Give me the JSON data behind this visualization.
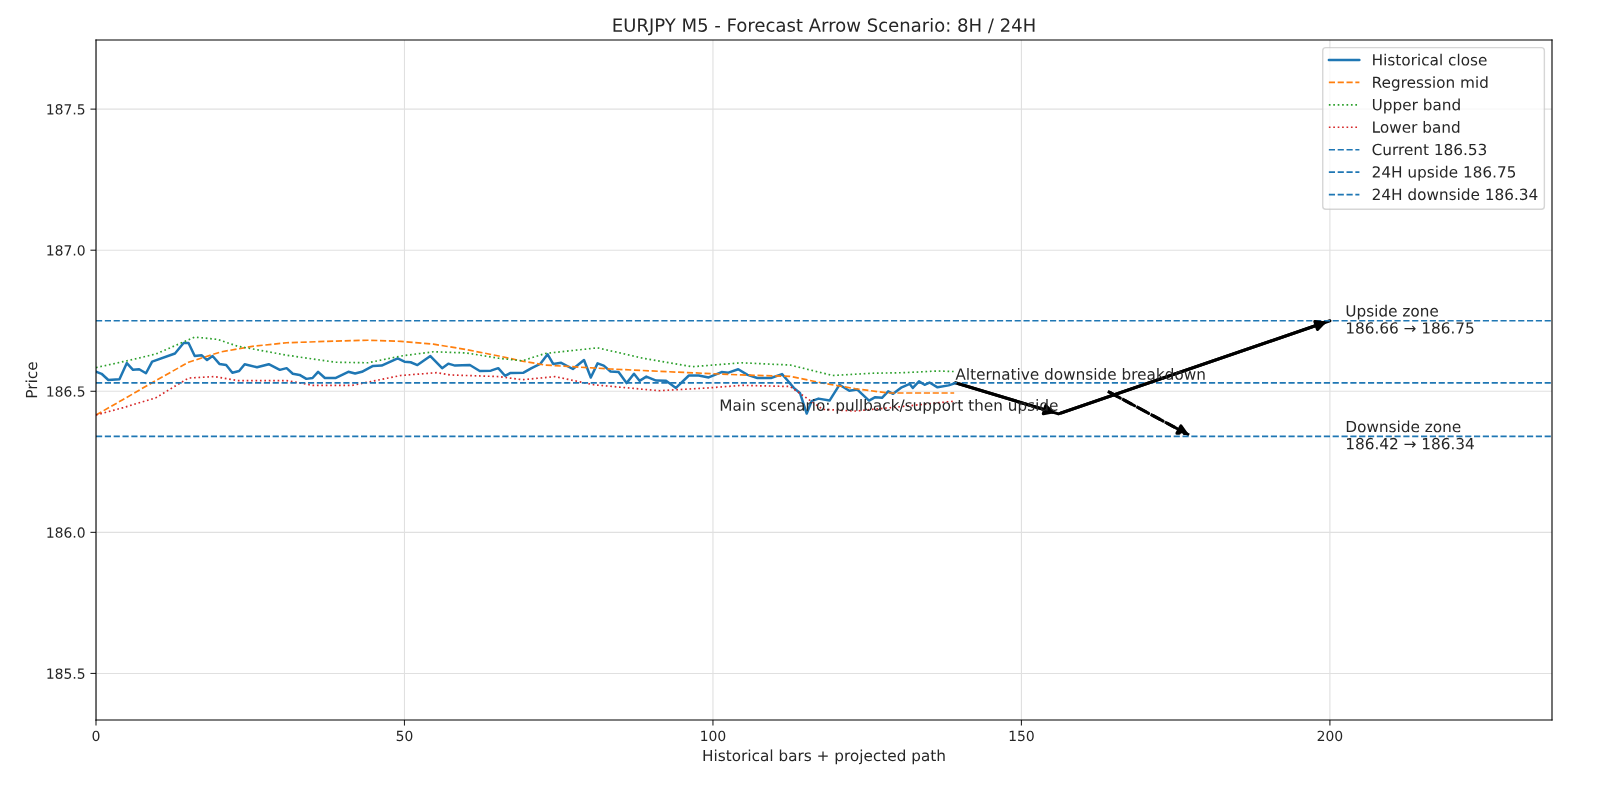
{
  "chart_data": {
    "type": "line",
    "title": "EURJPY M5 - Forecast Arrow Scenario: 8H / 24H",
    "xlabel": "Historical bars + projected path",
    "ylabel": "Price",
    "xlim": [
      0,
      236
    ],
    "ylim": [
      185.335,
      187.745
    ],
    "xticks": [
      0,
      50,
      100,
      150,
      200
    ],
    "yticks": [
      {
        "value": 185.5,
        "label": "185.5"
      },
      {
        "value": 186.0,
        "label": "186.0"
      },
      {
        "value": 186.5,
        "label": "186.5"
      },
      {
        "value": 187.0,
        "label": "187.0"
      },
      {
        "value": 187.5,
        "label": "187.5"
      }
    ],
    "grid": true,
    "legend": "top right",
    "series": [
      {
        "name": "Historical close",
        "color": "#1f77b4",
        "line_style": "solid",
        "x": [
          0,
          0.9,
          2.0,
          3.8,
          5.0,
          6.0,
          7.0,
          8.1,
          9.1,
          12.8,
          14.2,
          15.0,
          16.0,
          17.1,
          18.0,
          18.9,
          20.0,
          21.1,
          22.1,
          23.2,
          24.1,
          26.1,
          28.0,
          29.8,
          30.9,
          31.9,
          33.0,
          34.1,
          35.1,
          36.0,
          37.1,
          38.8,
          40.9,
          42.0,
          43.1,
          44.9,
          46.3,
          48.9,
          50.0,
          51.0,
          52.1,
          54.2,
          56.1,
          57.1,
          58.2,
          60.6,
          62.2,
          64.0,
          65.2,
          66.3,
          67.2,
          69.3,
          70.6,
          72.0,
          73.2,
          74.1,
          75.4,
          77.3,
          79.1,
          80.2,
          81.3,
          82.3,
          83.4,
          84.7,
          86.0,
          87.2,
          88.1,
          89.2,
          90.8,
          92.4,
          94.0,
          96.1,
          97.7,
          99.3,
          101.4,
          102.5,
          104.1,
          105.6,
          107.2,
          109.4,
          111.2,
          112.0,
          113.1,
          114.1,
          115.2,
          116.0,
          117.1,
          118.9,
          120.5,
          122.1,
          123.4,
          125.3,
          126.3,
          127.4,
          128.4,
          129.2,
          130.6,
          131.9,
          132.4,
          133.4,
          134.3,
          135.1,
          136.4,
          138.2,
          139.3
        ],
        "values": [
          186.57,
          186.562,
          186.54,
          186.543,
          186.6,
          186.576,
          186.578,
          186.564,
          186.605,
          186.634,
          186.671,
          186.671,
          186.625,
          186.628,
          186.611,
          186.625,
          186.597,
          186.593,
          186.566,
          186.572,
          186.596,
          186.585,
          186.596,
          186.576,
          186.582,
          186.562,
          186.558,
          186.544,
          186.547,
          186.569,
          186.547,
          186.547,
          186.569,
          186.563,
          186.569,
          186.59,
          186.591,
          186.617,
          186.605,
          186.603,
          186.593,
          186.625,
          186.582,
          186.598,
          186.591,
          186.593,
          186.572,
          186.573,
          186.582,
          186.555,
          186.565,
          186.566,
          186.582,
          186.597,
          186.631,
          186.597,
          186.601,
          186.579,
          186.611,
          186.549,
          186.599,
          186.591,
          186.57,
          186.568,
          186.529,
          186.562,
          186.537,
          186.552,
          186.538,
          186.537,
          186.512,
          186.556,
          186.556,
          186.549,
          186.568,
          186.566,
          186.578,
          186.558,
          186.547,
          186.547,
          186.561,
          186.541,
          186.512,
          186.494,
          186.421,
          186.465,
          186.474,
          186.467,
          186.523,
          186.502,
          186.506,
          186.467,
          186.479,
          186.477,
          186.5,
          186.491,
          186.514,
          186.526,
          186.512,
          186.535,
          186.523,
          186.531,
          186.514,
          186.521,
          186.529
        ]
      },
      {
        "name": "Regression mid",
        "color": "#ff7f0e",
        "line_style": "dashed",
        "x": [
          0,
          4.4,
          9.7,
          15.0,
          20.3,
          25.6,
          30.9,
          38.8,
          44.1,
          49.4,
          54.7,
          60.0,
          65.3,
          69.1,
          72.8,
          83.4,
          94.0,
          104.6,
          112.5,
          117.8,
          123.1,
          128.4,
          139.1
        ],
        "values": [
          186.416,
          186.471,
          186.538,
          186.603,
          186.64,
          186.66,
          186.672,
          186.678,
          186.681,
          186.677,
          186.667,
          186.648,
          186.625,
          186.607,
          186.593,
          186.579,
          186.568,
          186.558,
          186.553,
          186.529,
          186.509,
          186.494,
          186.494
        ]
      },
      {
        "name": "Upper band",
        "color": "#2ca02c",
        "line_style": "dotted",
        "x": [
          0,
          4.4,
          9.7,
          16.0,
          19.7,
          22.9,
          30.9,
          38.8,
          44.1,
          49.4,
          54.7,
          60.0,
          65.3,
          69.1,
          72.8,
          81.3,
          88.7,
          96.6,
          104.6,
          112.5,
          119.4,
          125.8,
          131.1,
          136.4,
          139.1
        ],
        "values": [
          186.584,
          186.605,
          186.632,
          186.692,
          186.684,
          186.66,
          186.628,
          186.603,
          186.601,
          186.625,
          186.64,
          186.636,
          186.617,
          186.608,
          186.634,
          186.654,
          186.617,
          186.587,
          186.601,
          186.593,
          186.556,
          186.564,
          186.566,
          186.572,
          186.57
        ]
      },
      {
        "name": "Lower band",
        "color": "#d62728",
        "line_style": "dotted",
        "x": [
          0,
          4.4,
          9.7,
          15.0,
          19.2,
          22.9,
          30.9,
          35.1,
          41.5,
          49.4,
          55.3,
          57.4,
          65.3,
          69.1,
          74.4,
          80.7,
          91.3,
          99.3,
          104.6,
          112.5,
          117.8,
          123.1,
          131.1,
          139.1
        ],
        "values": [
          186.416,
          186.442,
          186.477,
          186.547,
          186.552,
          186.538,
          186.538,
          186.521,
          186.521,
          186.556,
          186.566,
          186.558,
          186.552,
          186.541,
          186.552,
          186.523,
          186.502,
          186.512,
          186.521,
          186.517,
          186.436,
          186.43,
          186.447,
          186.465
        ]
      },
      {
        "color": "#000000",
        "line_style": "solid",
        "x": [
          139.3,
          156,
          200
        ],
        "values": [
          186.53,
          186.42,
          186.75
        ]
      },
      {
        "color": "#000000",
        "line_style": "dashed",
        "x": [
          164,
          177.6
        ],
        "values": [
          186.5,
          186.34
        ]
      }
    ],
    "ref_lines": [
      {
        "axis": "y",
        "value": 186.53,
        "label": "Current 186.53",
        "color": "#1f77b4",
        "line_style": "dashed"
      },
      {
        "axis": "y",
        "value": 186.75,
        "label": "24H upside 186.75",
        "color": "#1f77b4",
        "line_style": "dashed"
      },
      {
        "axis": "y",
        "value": 186.34,
        "label": "24H downside 186.34",
        "color": "#1f77b4",
        "line_style": "dashed"
      }
    ],
    "annotations": [
      {
        "text": "Alternative downside breakdown",
        "x": 139.3,
        "y": 186.53
      },
      {
        "text": "Main scenario: pullback/support then upside",
        "x": 156,
        "y": 186.42
      },
      {
        "text": "Upside zone\n186.66 → 186.75",
        "x": 202.5,
        "y": 186.75
      },
      {
        "text": "Downside zone\n186.42 → 186.34",
        "x": 202.5,
        "y": 186.34
      }
    ]
  }
}
